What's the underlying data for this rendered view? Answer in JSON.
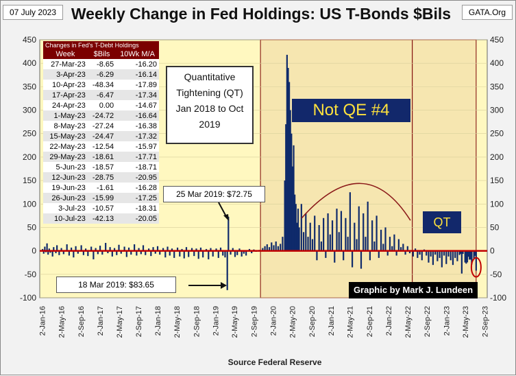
{
  "header": {
    "date": "07 July 2023",
    "title": "Weekly Change in Fed Holdings:  US T-Bonds $Bils",
    "site": "GATA.Org"
  },
  "table": {
    "caption": "Changes in Fed's T-Debt Holdings",
    "headers": [
      "Week",
      "$Bils",
      "10Wk M/A"
    ],
    "rows": [
      [
        "27-Mar-23",
        "-8.65",
        "-16.20"
      ],
      [
        "3-Apr-23",
        "-6.29",
        "-16.14"
      ],
      [
        "10-Apr-23",
        "-48.34",
        "-17.89"
      ],
      [
        "17-Apr-23",
        "-6.47",
        "-17.34"
      ],
      [
        "24-Apr-23",
        "0.00",
        "-14.67"
      ],
      [
        "1-May-23",
        "-24.72",
        "-16.64"
      ],
      [
        "8-May-23",
        "-27.24",
        "-16.38"
      ],
      [
        "15-May-23",
        "-24.47",
        "-17.32"
      ],
      [
        "22-May-23",
        "-12.54",
        "-15.97"
      ],
      [
        "29-May-23",
        "-18.61",
        "-17.71"
      ],
      [
        "5-Jun-23",
        "-18.57",
        "-18.71"
      ],
      [
        "12-Jun-23",
        "-28.75",
        "-20.95"
      ],
      [
        "19-Jun-23",
        "-1.61",
        "-16.28"
      ],
      [
        "26-Jun-23",
        "-15.99",
        "-17.25"
      ],
      [
        "3-Jul-23",
        "-10.57",
        "-18.31"
      ],
      [
        "10-Jul-23",
        "-42.13",
        "-20.05"
      ]
    ]
  },
  "annotations": {
    "qt_box": [
      "Quantitative",
      "Tightening (QT)",
      "Jan 2018 to Oct",
      "2019"
    ],
    "not_qe": "Not QE #4",
    "qt": "QT",
    "mar25": "25 Mar 2019:  $72.75",
    "mar18": "18 Mar 2019:  $83.65",
    "credit": "Graphic by Mark J. Lundeen",
    "source": "Source  Federal Reserve"
  },
  "colors": {
    "bars": "#0f2a6b",
    "zero_line": "#c00000",
    "plot_bg": "#fff8c0",
    "shaded_bg": "#f6e6b0",
    "table_header": "#7b0000",
    "label_box": "#12286b",
    "label_text": "#ffe23d"
  },
  "chart_data": {
    "type": "bar",
    "ylim": [
      -100,
      450
    ],
    "yticks": [
      450,
      400,
      350,
      300,
      250,
      200,
      150,
      100,
      50,
      0,
      -50,
      -100
    ],
    "xticks": [
      "2-Jan-16",
      "2-May-16",
      "2-Sep-16",
      "2-Jan-17",
      "2-May-17",
      "2-Sep-17",
      "2-Jan-18",
      "2-May-18",
      "2-Sep-18",
      "2-Jan-19",
      "2-May-19",
      "2-Sep-19",
      "2-Jan-20",
      "2-May-20",
      "2-Sep-20",
      "2-Jan-21",
      "2-May-21",
      "2-Sep-21",
      "2-Jan-22",
      "2-May-22",
      "2-Sep-22",
      "2-Jan-23",
      "2-May-23",
      "2-Sep-23"
    ],
    "shaded_regions": [
      [
        "2019-10-14",
        "2022-06-01"
      ],
      [
        "2022-06-01",
        "2023-07-10"
      ]
    ],
    "series": [
      {
        "values": [
          {
            "x": "2016-01-04",
            "y": 4
          },
          {
            "x": "2016-01-11",
            "y": -6
          },
          {
            "x": "2016-01-18",
            "y": 9
          },
          {
            "x": "2016-01-25",
            "y": -3
          },
          {
            "x": "2016-02-01",
            "y": 16
          },
          {
            "x": "2016-02-08",
            "y": -8
          },
          {
            "x": "2016-02-15",
            "y": 5
          },
          {
            "x": "2016-02-22",
            "y": -4
          },
          {
            "x": "2016-03-07",
            "y": -12
          },
          {
            "x": "2016-03-14",
            "y": 8
          },
          {
            "x": "2016-03-28",
            "y": -5
          },
          {
            "x": "2016-04-04",
            "y": 12
          },
          {
            "x": "2016-04-18",
            "y": -9
          },
          {
            "x": "2016-05-02",
            "y": 6
          },
          {
            "x": "2016-05-16",
            "y": -7
          },
          {
            "x": "2016-06-06",
            "y": 14
          },
          {
            "x": "2016-06-20",
            "y": -10
          },
          {
            "x": "2016-07-04",
            "y": 7
          },
          {
            "x": "2016-07-18",
            "y": -14
          },
          {
            "x": "2016-08-01",
            "y": 10
          },
          {
            "x": "2016-08-15",
            "y": -6
          },
          {
            "x": "2016-09-05",
            "y": 12
          },
          {
            "x": "2016-09-19",
            "y": -9
          },
          {
            "x": "2016-10-03",
            "y": 5
          },
          {
            "x": "2016-10-17",
            "y": -11
          },
          {
            "x": "2016-11-07",
            "y": 9
          },
          {
            "x": "2016-11-21",
            "y": -18
          },
          {
            "x": "2016-12-05",
            "y": 6
          },
          {
            "x": "2016-12-19",
            "y": -7
          },
          {
            "x": "2017-01-02",
            "y": 11
          },
          {
            "x": "2017-01-16",
            "y": -8
          },
          {
            "x": "2017-02-06",
            "y": 17
          },
          {
            "x": "2017-02-20",
            "y": -5
          },
          {
            "x": "2017-03-06",
            "y": 8
          },
          {
            "x": "2017-03-20",
            "y": -12
          },
          {
            "x": "2017-04-03",
            "y": 6
          },
          {
            "x": "2017-04-17",
            "y": -9
          },
          {
            "x": "2017-05-01",
            "y": 13
          },
          {
            "x": "2017-05-15",
            "y": -6
          },
          {
            "x": "2017-06-05",
            "y": 9
          },
          {
            "x": "2017-06-19",
            "y": -13
          },
          {
            "x": "2017-07-03",
            "y": 7
          },
          {
            "x": "2017-07-17",
            "y": -8
          },
          {
            "x": "2017-08-07",
            "y": 14
          },
          {
            "x": "2017-08-21",
            "y": -10
          },
          {
            "x": "2017-09-04",
            "y": 6
          },
          {
            "x": "2017-09-18",
            "y": -7
          },
          {
            "x": "2017-10-02",
            "y": 12
          },
          {
            "x": "2017-10-16",
            "y": -9
          },
          {
            "x": "2017-11-06",
            "y": 5
          },
          {
            "x": "2017-11-20",
            "y": -11
          },
          {
            "x": "2017-12-04",
            "y": 8
          },
          {
            "x": "2017-12-18",
            "y": -6
          },
          {
            "x": "2018-01-01",
            "y": 10
          },
          {
            "x": "2018-01-15",
            "y": -8
          },
          {
            "x": "2018-02-05",
            "y": 6
          },
          {
            "x": "2018-02-19",
            "y": -14
          },
          {
            "x": "2018-03-05",
            "y": 9
          },
          {
            "x": "2018-03-19",
            "y": -10
          },
          {
            "x": "2018-04-02",
            "y": 5
          },
          {
            "x": "2018-04-16",
            "y": -15
          },
          {
            "x": "2018-05-07",
            "y": 7
          },
          {
            "x": "2018-05-21",
            "y": -12
          },
          {
            "x": "2018-06-04",
            "y": 4
          },
          {
            "x": "2018-06-18",
            "y": -16
          },
          {
            "x": "2018-07-02",
            "y": 8
          },
          {
            "x": "2018-07-16",
            "y": -13
          },
          {
            "x": "2018-08-06",
            "y": 6
          },
          {
            "x": "2018-08-20",
            "y": -11
          },
          {
            "x": "2018-09-03",
            "y": 5
          },
          {
            "x": "2018-09-17",
            "y": -17
          },
          {
            "x": "2018-10-01",
            "y": 7
          },
          {
            "x": "2018-10-15",
            "y": -14
          },
          {
            "x": "2018-11-05",
            "y": 4
          },
          {
            "x": "2018-11-19",
            "y": -18
          },
          {
            "x": "2018-12-03",
            "y": 6
          },
          {
            "x": "2018-12-17",
            "y": -12
          },
          {
            "x": "2019-01-07",
            "y": 5
          },
          {
            "x": "2019-01-21",
            "y": -15
          },
          {
            "x": "2019-02-04",
            "y": 7
          },
          {
            "x": "2019-02-18",
            "y": -10
          },
          {
            "x": "2019-03-04",
            "y": -14
          },
          {
            "x": "2019-03-18",
            "y": -83.65
          },
          {
            "x": "2019-03-25",
            "y": 72.75
          },
          {
            "x": "2019-04-08",
            "y": -8
          },
          {
            "x": "2019-04-22",
            "y": 6
          },
          {
            "x": "2019-05-06",
            "y": -13
          },
          {
            "x": "2019-05-20",
            "y": -9
          },
          {
            "x": "2019-06-03",
            "y": 5
          },
          {
            "x": "2019-06-17",
            "y": -12
          },
          {
            "x": "2019-07-01",
            "y": -6
          },
          {
            "x": "2019-07-15",
            "y": -10
          },
          {
            "x": "2019-08-05",
            "y": 4
          },
          {
            "x": "2019-08-19",
            "y": -5
          },
          {
            "x": "2019-09-02",
            "y": 3
          },
          {
            "x": "2019-09-16",
            "y": -2
          },
          {
            "x": "2019-10-07",
            "y": 2
          },
          {
            "x": "2019-10-28",
            "y": 6
          },
          {
            "x": "2019-11-11",
            "y": 10
          },
          {
            "x": "2019-11-25",
            "y": 14
          },
          {
            "x": "2019-12-09",
            "y": 8
          },
          {
            "x": "2019-12-23",
            "y": 18
          },
          {
            "x": "2020-01-06",
            "y": 12
          },
          {
            "x": "2020-01-20",
            "y": 20
          },
          {
            "x": "2020-02-03",
            "y": 10
          },
          {
            "x": "2020-02-17",
            "y": 15
          },
          {
            "x": "2020-03-02",
            "y": 30
          },
          {
            "x": "2020-03-16",
            "y": 150
          },
          {
            "x": "2020-03-23",
            "y": 270
          },
          {
            "x": "2020-03-30",
            "y": 418
          },
          {
            "x": "2020-04-06",
            "y": 390
          },
          {
            "x": "2020-04-13",
            "y": 360
          },
          {
            "x": "2020-04-20",
            "y": 300
          },
          {
            "x": "2020-04-27",
            "y": 250
          },
          {
            "x": "2020-05-04",
            "y": 180
          },
          {
            "x": "2020-05-11",
            "y": 225
          },
          {
            "x": "2020-05-18",
            "y": 120
          },
          {
            "x": "2020-05-25",
            "y": 100
          },
          {
            "x": "2020-06-01",
            "y": 60
          },
          {
            "x": "2020-06-08",
            "y": 90
          },
          {
            "x": "2020-06-15",
            "y": 50
          },
          {
            "x": "2020-06-29",
            "y": 100
          },
          {
            "x": "2020-07-13",
            "y": 40
          },
          {
            "x": "2020-07-27",
            "y": 80
          },
          {
            "x": "2020-08-10",
            "y": 30
          },
          {
            "x": "2020-08-24",
            "y": 60
          },
          {
            "x": "2020-09-07",
            "y": 25
          },
          {
            "x": "2020-09-21",
            "y": 75
          },
          {
            "x": "2020-10-05",
            "y": -20
          },
          {
            "x": "2020-10-19",
            "y": 55
          },
          {
            "x": "2020-11-02",
            "y": 20
          },
          {
            "x": "2020-11-16",
            "y": 70
          },
          {
            "x": "2020-11-30",
            "y": -15
          },
          {
            "x": "2020-12-14",
            "y": 80
          },
          {
            "x": "2020-12-28",
            "y": 35
          },
          {
            "x": "2021-01-11",
            "y": 65
          },
          {
            "x": "2021-01-25",
            "y": -25
          },
          {
            "x": "2021-02-08",
            "y": 90
          },
          {
            "x": "2021-02-22",
            "y": 40
          },
          {
            "x": "2021-03-08",
            "y": 85
          },
          {
            "x": "2021-03-22",
            "y": -20
          },
          {
            "x": "2021-04-05",
            "y": 70
          },
          {
            "x": "2021-04-19",
            "y": 30
          },
          {
            "x": "2021-05-03",
            "y": 125
          },
          {
            "x": "2021-05-17",
            "y": -35
          },
          {
            "x": "2021-05-31",
            "y": 60
          },
          {
            "x": "2021-06-14",
            "y": 25
          },
          {
            "x": "2021-06-28",
            "y": 95
          },
          {
            "x": "2021-07-12",
            "y": -38
          },
          {
            "x": "2021-07-26",
            "y": 80
          },
          {
            "x": "2021-08-09",
            "y": 30
          },
          {
            "x": "2021-08-23",
            "y": 105
          },
          {
            "x": "2021-09-06",
            "y": -20
          },
          {
            "x": "2021-09-20",
            "y": 65
          },
          {
            "x": "2021-10-04",
            "y": 20
          },
          {
            "x": "2021-10-18",
            "y": 75
          },
          {
            "x": "2021-11-01",
            "y": -15
          },
          {
            "x": "2021-11-15",
            "y": 45
          },
          {
            "x": "2021-11-29",
            "y": 15
          },
          {
            "x": "2021-12-13",
            "y": 50
          },
          {
            "x": "2021-12-27",
            "y": -10
          },
          {
            "x": "2022-01-10",
            "y": 30
          },
          {
            "x": "2022-01-24",
            "y": 10
          },
          {
            "x": "2022-02-07",
            "y": 35
          },
          {
            "x": "2022-02-21",
            "y": -10
          },
          {
            "x": "2022-03-07",
            "y": 25
          },
          {
            "x": "2022-03-21",
            "y": 8
          },
          {
            "x": "2022-04-04",
            "y": 15
          },
          {
            "x": "2022-04-18",
            "y": -8
          },
          {
            "x": "2022-05-02",
            "y": 10
          },
          {
            "x": "2022-05-16",
            "y": -5
          },
          {
            "x": "2022-06-06",
            "y": -12
          },
          {
            "x": "2022-06-20",
            "y": 5
          },
          {
            "x": "2022-07-04",
            "y": -15
          },
          {
            "x": "2022-07-18",
            "y": -8
          },
          {
            "x": "2022-08-01",
            "y": -20
          },
          {
            "x": "2022-08-15",
            "y": 3
          },
          {
            "x": "2022-08-29",
            "y": -10
          },
          {
            "x": "2022-09-12",
            "y": -25
          },
          {
            "x": "2022-09-26",
            "y": -12
          },
          {
            "x": "2022-10-10",
            "y": -30
          },
          {
            "x": "2022-10-24",
            "y": -8
          },
          {
            "x": "2022-11-07",
            "y": -22
          },
          {
            "x": "2022-11-21",
            "y": -15
          },
          {
            "x": "2022-12-05",
            "y": -35
          },
          {
            "x": "2022-12-19",
            "y": -10
          },
          {
            "x": "2023-01-02",
            "y": -28
          },
          {
            "x": "2023-01-16",
            "y": -12
          },
          {
            "x": "2023-01-30",
            "y": -20
          },
          {
            "x": "2023-02-13",
            "y": -30
          },
          {
            "x": "2023-02-27",
            "y": -15
          },
          {
            "x": "2023-03-13",
            "y": -22
          },
          {
            "x": "2023-03-27",
            "y": -8.65
          },
          {
            "x": "2023-04-03",
            "y": -6.29
          },
          {
            "x": "2023-04-10",
            "y": -48.34
          },
          {
            "x": "2023-04-17",
            "y": -6.47
          },
          {
            "x": "2023-04-24",
            "y": 0
          },
          {
            "x": "2023-05-01",
            "y": -24.72
          },
          {
            "x": "2023-05-08",
            "y": -27.24
          },
          {
            "x": "2023-05-15",
            "y": -24.47
          },
          {
            "x": "2023-05-22",
            "y": -12.54
          },
          {
            "x": "2023-05-29",
            "y": -18.61
          },
          {
            "x": "2023-06-05",
            "y": -18.57
          },
          {
            "x": "2023-06-12",
            "y": -28.75
          },
          {
            "x": "2023-06-19",
            "y": -1.61
          },
          {
            "x": "2023-06-26",
            "y": -15.99
          },
          {
            "x": "2023-07-03",
            "y": -10.57
          },
          {
            "x": "2023-07-10",
            "y": -42.13
          }
        ]
      }
    ]
  }
}
